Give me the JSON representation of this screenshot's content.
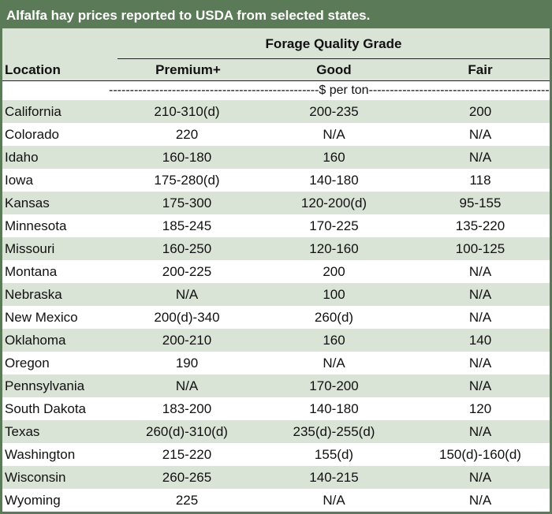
{
  "title": "Alfalfa hay prices reported to USDA from selected states.",
  "group_header": "Forage Quality Grade",
  "columns": {
    "location": "Location",
    "premium": "Premium+",
    "good": "Good",
    "fair": "Fair"
  },
  "unit_row": "--------------------------------------------------$ per ton------------------------------------------------",
  "rows": [
    {
      "location": "California",
      "premium": "210-310(d)",
      "good": "200-235",
      "fair": "200"
    },
    {
      "location": "Colorado",
      "premium": "220",
      "good": "N/A",
      "fair": "N/A"
    },
    {
      "location": "Idaho",
      "premium": "160-180",
      "good": "160",
      "fair": "N/A"
    },
    {
      "location": "Iowa",
      "premium": "175-280(d)",
      "good": "140-180",
      "fair": "118"
    },
    {
      "location": "Kansas",
      "premium": "175-300",
      "good": "120-200(d)",
      "fair": "95-155"
    },
    {
      "location": "Minnesota",
      "premium": "185-245",
      "good": "170-225",
      "fair": "135-220"
    },
    {
      "location": "Missouri",
      "premium": "160-250",
      "good": "120-160",
      "fair": "100-125"
    },
    {
      "location": "Montana",
      "premium": "200-225",
      "good": "200",
      "fair": "N/A"
    },
    {
      "location": "Nebraska",
      "premium": "N/A",
      "good": "100",
      "fair": "N/A"
    },
    {
      "location": "New Mexico",
      "premium": "200(d)-340",
      "good": "260(d)",
      "fair": "N/A"
    },
    {
      "location": "Oklahoma",
      "premium": "200-210",
      "good": "160",
      "fair": "140"
    },
    {
      "location": "Oregon",
      "premium": "190",
      "good": "N/A",
      "fair": "N/A"
    },
    {
      "location": "Pennsylvania",
      "premium": "N/A",
      "good": "170-200",
      "fair": "N/A"
    },
    {
      "location": "South Dakota",
      "premium": "183-200",
      "good": "140-180",
      "fair": "120"
    },
    {
      "location": "Texas",
      "premium": "260(d)-310(d)",
      "good": "235(d)-255(d)",
      "fair": "N/A"
    },
    {
      "location": "Washington",
      "premium": "215-220",
      "good": "155(d)",
      "fair": "150(d)-160(d)"
    },
    {
      "location": "Wisconsin",
      "premium": "260-265",
      "good": "140-215",
      "fair": "N/A"
    },
    {
      "location": "Wyoming",
      "premium": "225",
      "good": "N/A",
      "fair": "N/A"
    }
  ]
}
